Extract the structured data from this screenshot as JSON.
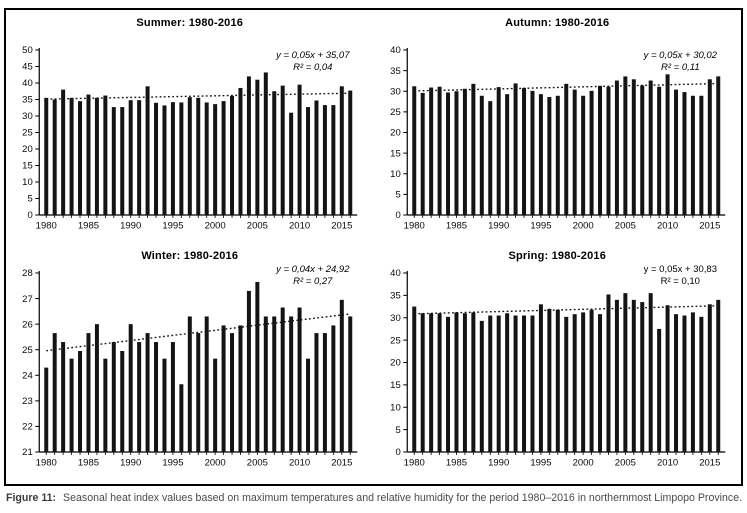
{
  "figure": {
    "label": "Figure 11:",
    "caption": "Seasonal heat index values based on maximum temperatures and relative humidity for the period 1980–2016 in northernmost Limpopo Province."
  },
  "colors": {
    "bar": "#141414",
    "axis": "#000000",
    "trend_line": "#141414",
    "caption_label": "#3c3c3c",
    "caption_text": "#4a4a4a"
  },
  "years": [
    1980,
    1981,
    1982,
    1983,
    1984,
    1985,
    1986,
    1987,
    1988,
    1989,
    1990,
    1991,
    1992,
    1993,
    1994,
    1995,
    1996,
    1997,
    1998,
    1999,
    2000,
    2001,
    2002,
    2003,
    2004,
    2005,
    2006,
    2007,
    2008,
    2009,
    2010,
    2011,
    2012,
    2013,
    2014,
    2015,
    2016
  ],
  "chart_data": [
    {
      "type": "bar",
      "title": "Summer: 1980-2016",
      "equation": "y = 0,05x + 35,07",
      "r2": "R² = 0,04",
      "ylabel": "",
      "xlabel": "",
      "ylim": [
        0,
        50
      ],
      "ystep": 5,
      "xtick_every": 5,
      "grid": false,
      "trend": {
        "slope": 0.05,
        "intercept": 35.07
      },
      "values": [
        35.5,
        35.0,
        38.0,
        35.5,
        34.5,
        36.5,
        35.5,
        36.2,
        32.7,
        32.7,
        34.8,
        34.8,
        39.0,
        34.0,
        33.2,
        34.2,
        34.1,
        35.7,
        35.5,
        34.1,
        33.6,
        34.5,
        36.1,
        38.5,
        42.0,
        41.0,
        43.2,
        37.5,
        39.2,
        31.0,
        39.5,
        32.7,
        34.7,
        33.3,
        33.3,
        39.0,
        37.7
      ]
    },
    {
      "type": "bar",
      "title": "Autumn: 1980-2016",
      "equation": "y = 0,05x + 30,02",
      "r2": "R² = 0,11",
      "ylabel": "",
      "xlabel": "",
      "ylim": [
        0,
        40
      ],
      "ystep": 5,
      "xtick_every": 5,
      "grid": false,
      "trend": {
        "slope": 0.05,
        "intercept": 30.02
      },
      "values": [
        31.2,
        29.6,
        30.9,
        31.1,
        29.7,
        30.0,
        30.6,
        31.8,
        28.9,
        27.6,
        31.0,
        29.3,
        31.9,
        30.8,
        30.1,
        29.3,
        28.6,
        28.9,
        31.8,
        30.4,
        28.9,
        30.1,
        31.3,
        31.1,
        32.6,
        33.6,
        32.9,
        31.4,
        32.6,
        31.1,
        34.1,
        30.4,
        29.8,
        28.9,
        28.9,
        32.9,
        33.6
      ]
    },
    {
      "type": "bar",
      "title": "Winter: 1980-2016",
      "equation": "y = 0,04x + 24,92",
      "r2": "R² = 0,27",
      "ylabel": "",
      "xlabel": "",
      "ylim": [
        21,
        28
      ],
      "ystep": 1,
      "xtick_every": 5,
      "grid": false,
      "trend": {
        "slope": 0.04,
        "intercept": 24.92
      },
      "values": [
        24.3,
        25.65,
        25.3,
        24.65,
        24.95,
        25.65,
        26.0,
        24.65,
        25.3,
        24.95,
        26.0,
        25.3,
        25.65,
        25.3,
        24.65,
        25.3,
        23.65,
        26.3,
        25.65,
        26.3,
        24.65,
        25.95,
        25.65,
        25.95,
        27.3,
        27.65,
        26.3,
        26.3,
        26.65,
        26.3,
        26.65,
        24.65,
        25.65,
        25.65,
        25.95,
        26.95,
        26.3
      ]
    },
    {
      "type": "bar",
      "title": "Spring: 1980-2016",
      "equation": "y = 0,05x + 30,83",
      "r2": "R² = 0,10",
      "ylabel": "",
      "xlabel": "",
      "ylim": [
        0,
        40
      ],
      "ystep": 5,
      "xtick_every": 5,
      "grid": false,
      "trend": {
        "slope": 0.05,
        "intercept": 30.83
      },
      "values": [
        32.5,
        31.0,
        31.0,
        31.0,
        30.2,
        31.2,
        31.0,
        31.2,
        29.3,
        30.5,
        30.5,
        31.0,
        30.5,
        30.5,
        30.5,
        33.0,
        32.0,
        31.8,
        30.2,
        30.8,
        31.2,
        31.8,
        30.8,
        35.2,
        34.0,
        35.5,
        34.0,
        33.5,
        35.5,
        27.5,
        32.8,
        30.8,
        30.5,
        31.2,
        30.2,
        33.0,
        34.0
      ]
    }
  ]
}
